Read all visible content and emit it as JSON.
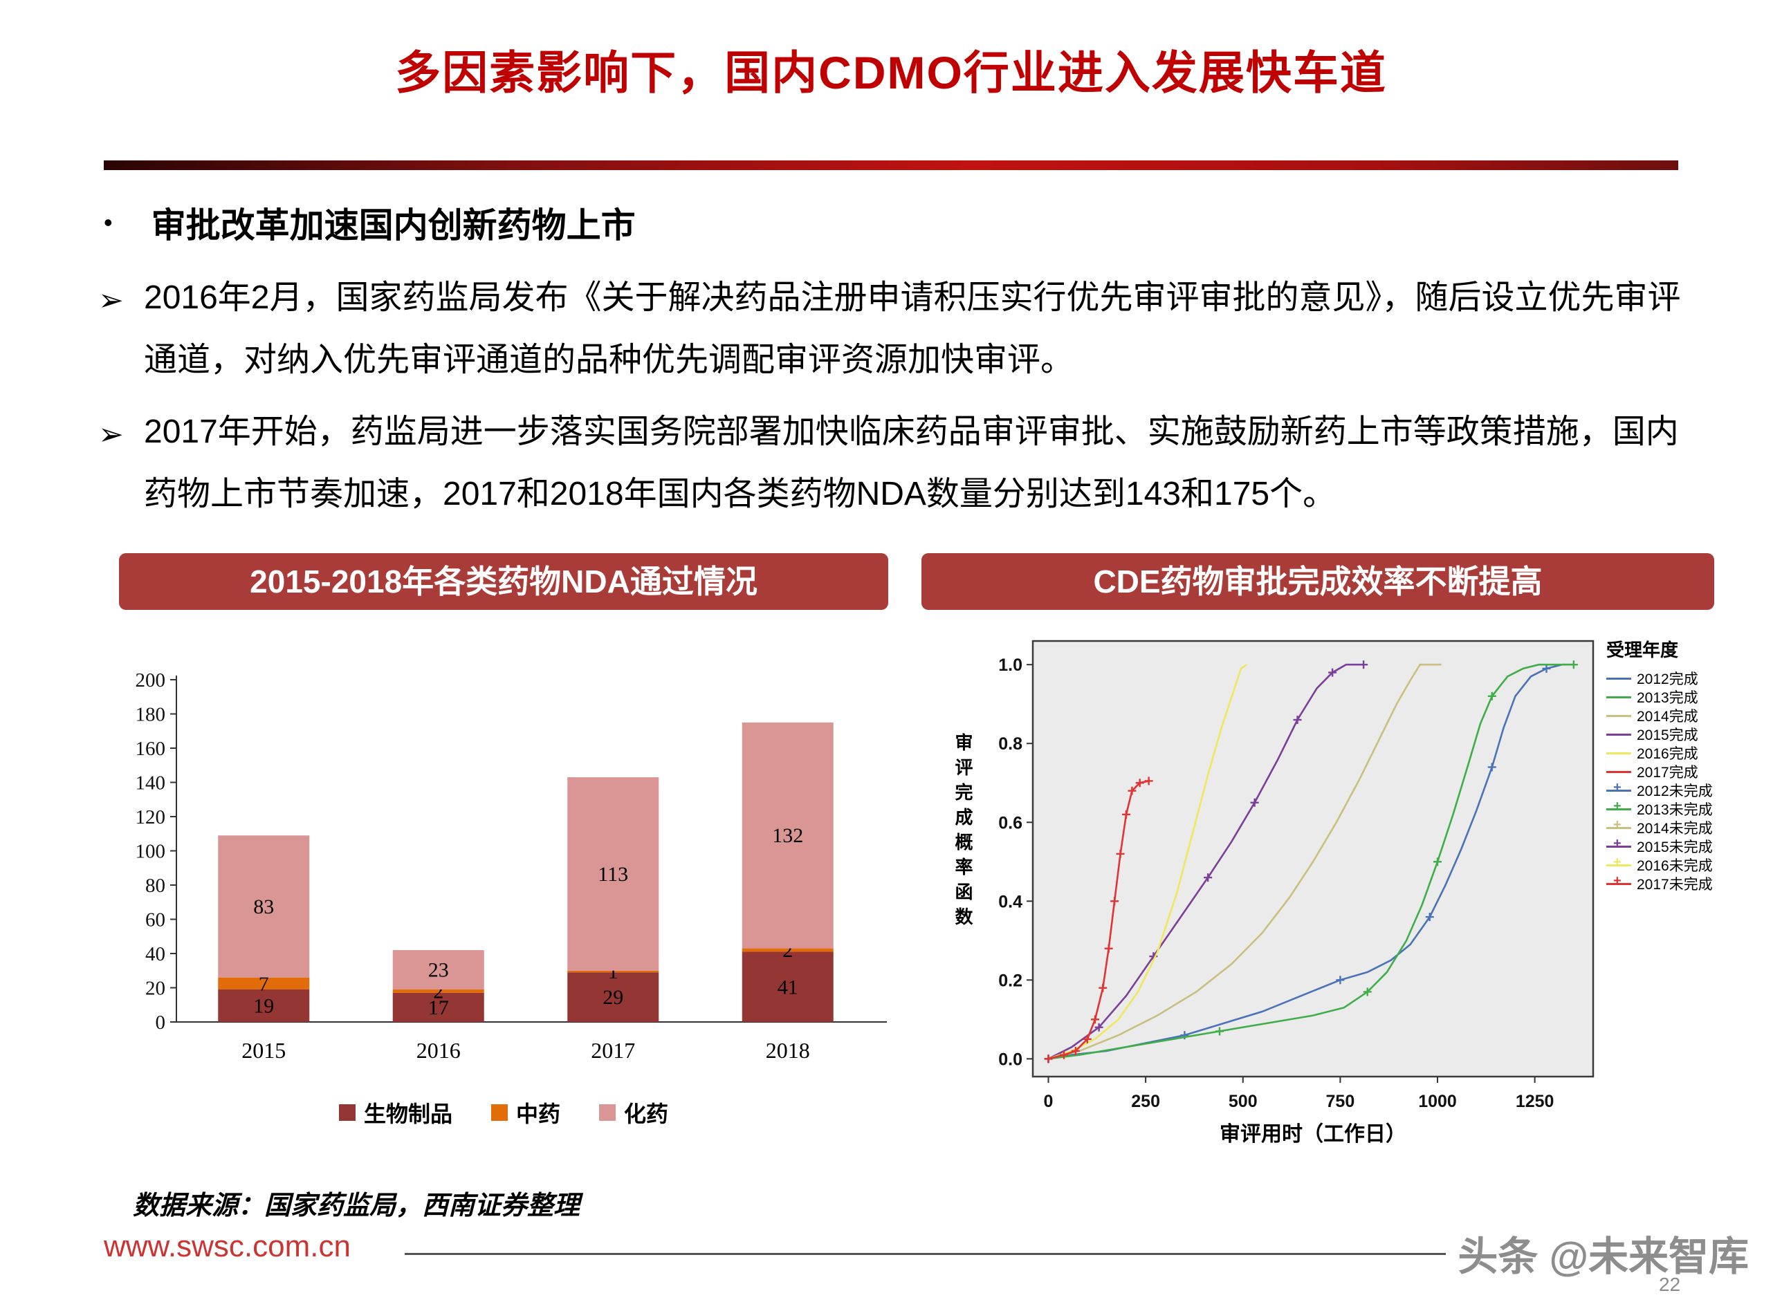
{
  "page": {
    "title": "多因素影响下，国内CDMO行业进入发展快车道",
    "dot_marker": "•",
    "bullet_marker": "➢",
    "section_heading": "审批改革加速国内创新药物上市",
    "points": [
      "2016年2月，国家药监局发布《关于解决药品注册申请积压实行优先审评审批的意见》，随后设立优先审评通道，对纳入优先审评通道的品种优先调配审评资源加快审评。",
      "2017年开始，药监局进一步落实国务院部署加快临床药品审评审批、实施鼓励新药上市等政策措施，国内药物上市节奏加速，2017和2018年国内各类药物NDA数量分别达到143和175个。"
    ],
    "source_note": "数据来源：国家药监局，西南证券整理",
    "footer_url": "www.swsc.com.cn",
    "watermark": "头条 @未来智库",
    "page_number": "22"
  },
  "panels": {
    "left_title": "2015-2018年各类药物NDA通过情况",
    "right_title": "CDE药物审批完成效率不断提高"
  },
  "colors": {
    "title_red": "#c00000",
    "banner_red": "#a93c38",
    "bar_bio": "#943634",
    "bar_tcm": "#e36c0a",
    "bar_chem": "#d99694"
  },
  "chart_data": [
    {
      "type": "bar",
      "stacked": true,
      "title": "2015-2018年各类药物NDA通过情况",
      "categories": [
        "2015",
        "2016",
        "2017",
        "2018"
      ],
      "series": [
        {
          "name": "生物制品",
          "color": "#943634",
          "values": [
            19,
            17,
            29,
            41
          ]
        },
        {
          "name": "中药",
          "color": "#e36c0a",
          "values": [
            7,
            2,
            1,
            2
          ]
        },
        {
          "name": "化药",
          "color": "#d99694",
          "values": [
            83,
            23,
            113,
            132
          ]
        }
      ],
      "totals": [
        109,
        42,
        143,
        175
      ],
      "ylim": [
        0,
        200
      ],
      "ytick_step": 20,
      "grid": false,
      "legend_position": "bottom"
    },
    {
      "type": "line",
      "title": "CDE药物审批完成效率不断提高",
      "xlabel": "审评用时（工作日）",
      "ylabel": "审评完成概率函数",
      "legend_title": "受理年度",
      "xlim": [
        -40,
        1400
      ],
      "ylim": [
        -0.045,
        1.06
      ],
      "xticks": [
        0,
        250,
        500,
        750,
        1000,
        1250
      ],
      "yticks": [
        0.0,
        0.2,
        0.4,
        0.6,
        0.8,
        1.0
      ],
      "plot_bg": "#ebebeb",
      "series": [
        {
          "name": "2012完成",
          "color": "#4a72b8",
          "marker_every": 4,
          "legend_marker": false,
          "points": [
            [
              0,
              0
            ],
            [
              60,
              0.01
            ],
            [
              150,
              0.02
            ],
            [
              250,
              0.04
            ],
            [
              350,
              0.06
            ],
            [
              450,
              0.09
            ],
            [
              550,
              0.12
            ],
            [
              650,
              0.16
            ],
            [
              750,
              0.2
            ],
            [
              820,
              0.22
            ],
            [
              880,
              0.25
            ],
            [
              930,
              0.29
            ],
            [
              980,
              0.36
            ],
            [
              1020,
              0.44
            ],
            [
              1060,
              0.53
            ],
            [
              1100,
              0.63
            ],
            [
              1140,
              0.74
            ],
            [
              1170,
              0.84
            ],
            [
              1200,
              0.92
            ],
            [
              1240,
              0.97
            ],
            [
              1280,
              0.99
            ],
            [
              1320,
              1.0
            ],
            [
              1350,
              1.0
            ]
          ]
        },
        {
          "name": "2013完成",
          "color": "#3fae49",
          "marker_every": 4,
          "legend_marker": false,
          "points": [
            [
              0,
              0
            ],
            [
              80,
              0.01
            ],
            [
              200,
              0.03
            ],
            [
              320,
              0.05
            ],
            [
              440,
              0.07
            ],
            [
              560,
              0.09
            ],
            [
              680,
              0.11
            ],
            [
              760,
              0.13
            ],
            [
              820,
              0.17
            ],
            [
              870,
              0.22
            ],
            [
              920,
              0.3
            ],
            [
              960,
              0.39
            ],
            [
              1000,
              0.5
            ],
            [
              1040,
              0.62
            ],
            [
              1080,
              0.75
            ],
            [
              1110,
              0.85
            ],
            [
              1140,
              0.92
            ],
            [
              1180,
              0.97
            ],
            [
              1220,
              0.99
            ],
            [
              1260,
              1.0
            ],
            [
              1350,
              1.0
            ]
          ]
        },
        {
          "name": "2014完成",
          "color": "#c9c07f",
          "marker_every": 0,
          "legend_marker": false,
          "points": [
            [
              0,
              0
            ],
            [
              80,
              0.02
            ],
            [
              180,
              0.06
            ],
            [
              280,
              0.11
            ],
            [
              380,
              0.17
            ],
            [
              470,
              0.24
            ],
            [
              550,
              0.32
            ],
            [
              620,
              0.41
            ],
            [
              680,
              0.5
            ],
            [
              740,
              0.6
            ],
            [
              800,
              0.71
            ],
            [
              850,
              0.81
            ],
            [
              895,
              0.9
            ],
            [
              930,
              0.96
            ],
            [
              955,
              1.0
            ],
            [
              1010,
              1.0
            ]
          ]
        },
        {
          "name": "2015完成",
          "color": "#7b3f9b",
          "marker_every": 2,
          "legend_marker": false,
          "points": [
            [
              0,
              0
            ],
            [
              60,
              0.03
            ],
            [
              130,
              0.08
            ],
            [
              200,
              0.16
            ],
            [
              270,
              0.26
            ],
            [
              340,
              0.36
            ],
            [
              410,
              0.46
            ],
            [
              470,
              0.55
            ],
            [
              530,
              0.65
            ],
            [
              590,
              0.76
            ],
            [
              640,
              0.86
            ],
            [
              690,
              0.94
            ],
            [
              730,
              0.98
            ],
            [
              765,
              1.0
            ],
            [
              810,
              1.0
            ]
          ]
        },
        {
          "name": "2016完成",
          "color": "#efe85e",
          "marker_every": 0,
          "legend_marker": false,
          "points": [
            [
              0,
              0
            ],
            [
              60,
              0.02
            ],
            [
              120,
              0.05
            ],
            [
              180,
              0.1
            ],
            [
              230,
              0.17
            ],
            [
              280,
              0.27
            ],
            [
              330,
              0.42
            ],
            [
              370,
              0.57
            ],
            [
              410,
              0.72
            ],
            [
              445,
              0.84
            ],
            [
              475,
              0.93
            ],
            [
              495,
              0.99
            ],
            [
              510,
              1.0
            ]
          ]
        },
        {
          "name": "2017完成",
          "color": "#e23333",
          "marker_every": 0,
          "legend_marker": false,
          "points": []
        },
        {
          "name": "2012未完成",
          "color": "#4a72b8",
          "marker_every": 1,
          "legend_marker": true,
          "points": []
        },
        {
          "name": "2013未完成",
          "color": "#3fae49",
          "marker_every": 1,
          "legend_marker": true,
          "points": []
        },
        {
          "name": "2014未完成",
          "color": "#c9c07f",
          "marker_every": 1,
          "legend_marker": true,
          "points": []
        },
        {
          "name": "2015未完成",
          "color": "#7b3f9b",
          "marker_every": 1,
          "legend_marker": true,
          "points": []
        },
        {
          "name": "2016未完成",
          "color": "#efe85e",
          "marker_every": 1,
          "legend_marker": true,
          "points": []
        },
        {
          "name": "2017未完成",
          "color": "#e23333",
          "marker_every": 1,
          "legend_marker": true,
          "points": [
            [
              0,
              0
            ],
            [
              40,
              0.01
            ],
            [
              70,
              0.02
            ],
            [
              100,
              0.05
            ],
            [
              120,
              0.1
            ],
            [
              140,
              0.18
            ],
            [
              155,
              0.28
            ],
            [
              170,
              0.4
            ],
            [
              185,
              0.52
            ],
            [
              200,
              0.62
            ],
            [
              215,
              0.68
            ],
            [
              235,
              0.7
            ],
            [
              258,
              0.705
            ]
          ]
        }
      ]
    }
  ]
}
